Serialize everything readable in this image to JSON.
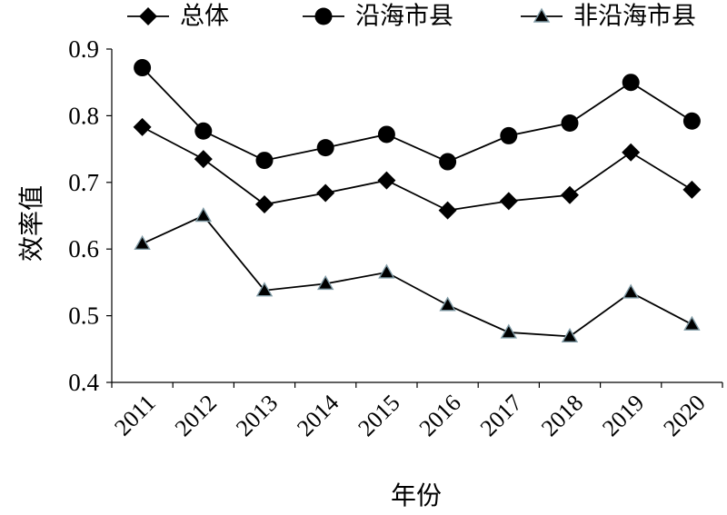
{
  "chart_data": {
    "type": "line",
    "xlabel": "年份",
    "ylabel": "效率值",
    "ylim": [
      0.4,
      0.9
    ],
    "yticks": [
      "0.4",
      "0.5",
      "0.6",
      "0.7",
      "0.8",
      "0.9"
    ],
    "categories": [
      "2011",
      "2012",
      "2013",
      "2014",
      "2015",
      "2016",
      "2017",
      "2018",
      "2019",
      "2020"
    ],
    "grid": false,
    "legend_position": "top",
    "series": [
      {
        "name": "总体",
        "marker": "diamond",
        "color": "#000000",
        "values": [
          0.783,
          0.735,
          0.667,
          0.684,
          0.703,
          0.658,
          0.672,
          0.681,
          0.745,
          0.689
        ]
      },
      {
        "name": "沿海市县",
        "marker": "circle",
        "color": "#000000",
        "values": [
          0.872,
          0.777,
          0.733,
          0.752,
          0.772,
          0.731,
          0.77,
          0.789,
          0.85,
          0.792
        ]
      },
      {
        "name": "非沿海市县",
        "marker": "triangle",
        "color": "#000000",
        "marker_edge": "#7f9aa5",
        "values": [
          0.608,
          0.65,
          0.538,
          0.548,
          0.565,
          0.516,
          0.475,
          0.469,
          0.535,
          0.487
        ]
      }
    ]
  }
}
